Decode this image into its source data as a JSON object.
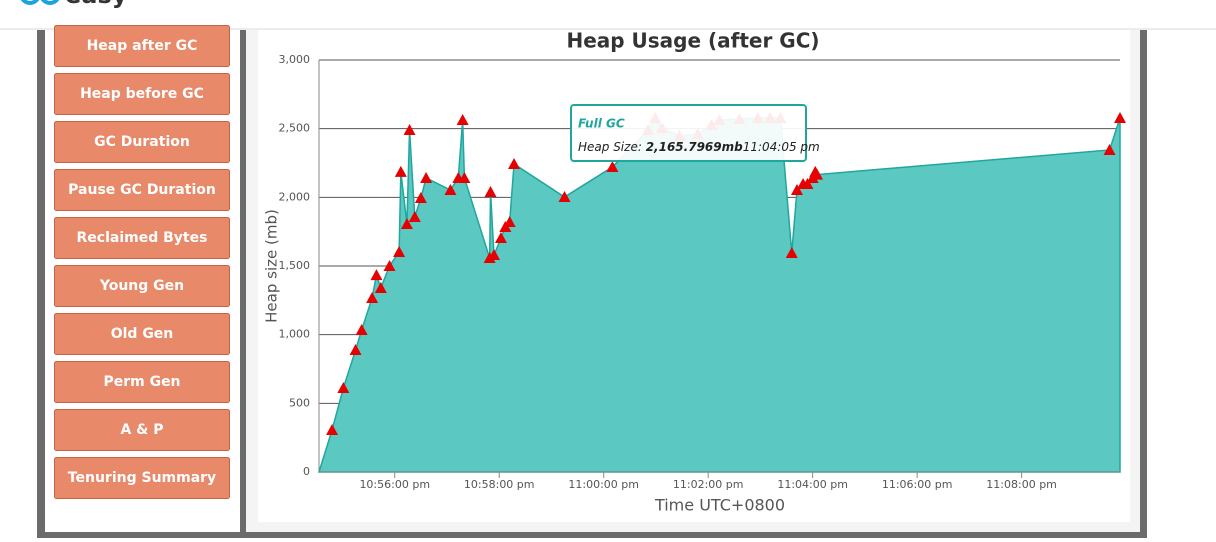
{
  "header": {
    "logo": "easy"
  },
  "sidebar": {
    "buttons": [
      "Heap after GC",
      "Heap before GC",
      "GC Duration",
      "Pause GC Duration",
      "Reclaimed Bytes",
      "Young Gen",
      "Old Gen",
      "Perm Gen",
      "A & P",
      "Tenuring Summary"
    ]
  },
  "chart_data": {
    "type": "area",
    "title": "Heap Usage (after GC)",
    "x_label": "Time UTC+0800",
    "y_label": "Heap size (mb)",
    "x": [
      "10:54:33 pm",
      "10:54:48 pm",
      "10:55:01 pm",
      "10:55:15 pm",
      "10:55:22 pm",
      "10:55:34 pm",
      "10:55:39 pm",
      "10:55:44 pm",
      "10:55:54 pm",
      "10:56:05 pm",
      "10:56:07 pm",
      "10:56:14 pm",
      "10:56:17 pm",
      "10:56:23 pm",
      "10:56:30 pm",
      "10:56:36 pm",
      "10:57:04 pm",
      "10:57:13 pm",
      "10:57:18 pm",
      "10:57:20 pm",
      "10:57:49 pm",
      "10:57:50 pm",
      "10:57:54 pm",
      "10:58:02 pm",
      "10:58:07 pm",
      "10:58:12 pm",
      "10:58:17 pm",
      "10:59:15 pm",
      "11:00:10 pm",
      "11:00:51 pm",
      "11:00:59 pm",
      "11:01:07 pm",
      "11:01:27 pm",
      "11:01:48 pm",
      "11:02:04 pm",
      "11:02:13 pm",
      "11:02:36 pm",
      "11:02:57 pm",
      "11:03:11 pm",
      "11:03:23 pm",
      "11:03:36 pm",
      "11:03:42 pm",
      "11:03:49 pm",
      "11:03:54 pm",
      "11:04:00 pm",
      "11:04:03 pm",
      "11:04:05 pm",
      "11:09:41 pm",
      "11:09:53 pm"
    ],
    "series": [
      {
        "name": "Full GC",
        "color": "#5bc8c2",
        "line_color": "#1fa79e",
        "marker_color": "#e60000",
        "values": [
          0,
          306,
          612,
          888,
          1034,
          1267,
          1434,
          1340,
          1500,
          1602,
          2185,
          1806,
          2490,
          1857,
          1995,
          2141,
          2053,
          2141,
          2563,
          2141,
          1558,
          2039,
          1580,
          1704,
          1784,
          1820,
          2243,
          2002,
          2221,
          2490,
          2578,
          2505,
          2447,
          2461,
          2527,
          2563,
          2570,
          2578,
          2578,
          2578,
          1595,
          2053,
          2097,
          2097,
          2141,
          2185,
          2165.7969,
          2345,
          2578
        ]
      }
    ],
    "xlim": [
      "10:54:33 pm",
      "11:09:53 pm"
    ],
    "xticks": [
      "10:56:00 pm",
      "10:58:00 pm",
      "11:00:00 pm",
      "11:02:00 pm",
      "11:04:00 pm",
      "11:06:00 pm",
      "11:08:00 pm"
    ],
    "ylim": [
      0,
      3000
    ],
    "yticks": [
      0,
      500,
      {
        "value": 1000,
        "label": "1,000"
      },
      {
        "value": 1500,
        "label": "1,500"
      },
      {
        "value": 2000,
        "label": "2,000"
      },
      {
        "value": 2500,
        "label": "2,500"
      },
      {
        "value": 3000,
        "label": "3,000"
      }
    ],
    "grid": true,
    "tooltip": {
      "title": "Full GC",
      "label": "Heap Size:",
      "value": "2,165.7969mb",
      "time": "11:04:05 pm"
    }
  }
}
